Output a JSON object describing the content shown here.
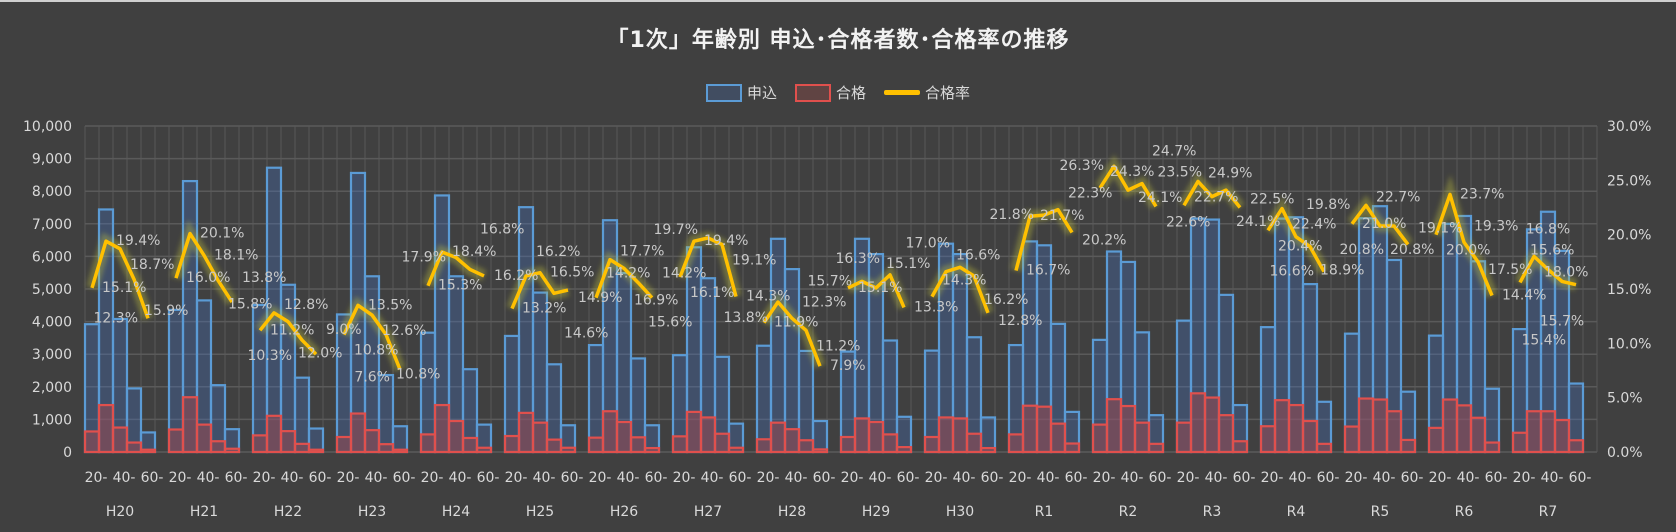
{
  "title": "「1次」年齢別 申込･合格者数･合格率の推移",
  "legend": {
    "applicants": "申込",
    "passed": "合格",
    "rate": "合格率"
  },
  "colors": {
    "applicants": "#5b9bd5",
    "passed": "#e0504d",
    "rate": "#ffc000",
    "background": "#404040"
  },
  "chart_data": {
    "type": "bar+line",
    "title": "「1次」年齢別 申込･合格者数･合格率の推移",
    "groups": [
      "H20",
      "H21",
      "H22",
      "H23",
      "H24",
      "H25",
      "H26",
      "H27",
      "H28",
      "H29",
      "H30",
      "R1",
      "R2",
      "R3",
      "R4",
      "R5",
      "R6",
      "R7"
    ],
    "age_tick_labels": [
      "20-",
      "40-",
      "60-"
    ],
    "y_left": {
      "range": [
        0,
        10000
      ],
      "ticks": [
        "0",
        "1,000",
        "2,000",
        "3,000",
        "4,000",
        "5,000",
        "6,000",
        "7,000",
        "8,000",
        "9,000",
        "10,000"
      ]
    },
    "y_right": {
      "range": [
        0,
        30
      ],
      "ticks": [
        "0.0%",
        "5.0%",
        "10.0%",
        "15.0%",
        "20.0%",
        "25.0%",
        "30.0%"
      ]
    },
    "grid": true,
    "legend_position": "top",
    "series": [
      {
        "name": "申込",
        "type": "bar",
        "values": [
          [
            3920,
            7440,
            4080,
            1950,
            600
          ],
          [
            4360,
            8310,
            4650,
            2050,
            700
          ],
          [
            4510,
            8720,
            5130,
            2280,
            720
          ],
          [
            4220,
            8560,
            5390,
            2360,
            790
          ],
          [
            3660,
            7870,
            5390,
            2540,
            840
          ],
          [
            3560,
            7510,
            4890,
            2690,
            820
          ],
          [
            3280,
            7110,
            5490,
            2870,
            820
          ],
          [
            2970,
            6280,
            5330,
            2920,
            870
          ],
          [
            3260,
            6540,
            5610,
            3100,
            950
          ],
          [
            3080,
            6540,
            6070,
            3420,
            1080
          ],
          [
            3110,
            6390,
            6070,
            3520,
            1060
          ],
          [
            3280,
            6460,
            6340,
            3930,
            1230
          ],
          [
            3440,
            6150,
            5830,
            3670,
            1130
          ],
          [
            4030,
            7160,
            7130,
            4820,
            1440
          ],
          [
            3830,
            7160,
            7200,
            5150,
            1540
          ],
          [
            3630,
            7170,
            7540,
            5890,
            1850
          ],
          [
            3570,
            7000,
            7240,
            5850,
            1940
          ],
          [
            3770,
            6830,
            7370,
            6170,
            2100
          ]
        ]
      },
      {
        "name": "合格",
        "type": "bar",
        "values": [
          [
            630,
            1440,
            750,
            290,
            70
          ],
          [
            690,
            1680,
            840,
            330,
            100
          ],
          [
            510,
            1110,
            640,
            250,
            70
          ],
          [
            460,
            1180,
            670,
            240,
            70
          ],
          [
            540,
            1440,
            950,
            430,
            130
          ],
          [
            490,
            1200,
            900,
            380,
            130
          ],
          [
            440,
            1250,
            920,
            450,
            120
          ],
          [
            480,
            1230,
            1060,
            560,
            130
          ],
          [
            390,
            900,
            700,
            360,
            80
          ],
          [
            460,
            1030,
            920,
            540,
            150
          ],
          [
            460,
            1060,
            1030,
            560,
            120
          ],
          [
            540,
            1420,
            1390,
            870,
            260
          ],
          [
            840,
            1620,
            1410,
            900,
            250
          ],
          [
            900,
            1800,
            1670,
            1130,
            330
          ],
          [
            790,
            1590,
            1440,
            950,
            250
          ],
          [
            780,
            1640,
            1610,
            1250,
            370
          ],
          [
            740,
            1610,
            1430,
            1050,
            290
          ],
          [
            590,
            1250,
            1250,
            980,
            360
          ]
        ]
      },
      {
        "name": "合格率",
        "type": "line",
        "unit": "%",
        "values": [
          [
            15.1,
            19.4,
            18.7,
            15.9,
            12.3
          ],
          [
            16.0,
            20.1,
            18.1,
            15.8,
            13.8
          ],
          [
            11.2,
            12.8,
            12.0,
            10.3,
            9.0
          ],
          [
            10.8,
            13.5,
            12.6,
            10.8,
            7.6
          ],
          [
            15.3,
            18.4,
            17.9,
            16.8,
            16.2
          ],
          [
            13.2,
            16.2,
            16.5,
            14.6,
            14.9
          ],
          [
            14.2,
            17.7,
            16.9,
            15.6,
            14.2
          ],
          [
            16.1,
            19.4,
            19.7,
            19.1,
            14.3
          ],
          [
            11.9,
            13.8,
            12.3,
            11.2,
            7.9
          ],
          [
            15.1,
            15.7,
            15.1,
            16.3,
            13.3
          ],
          [
            14.3,
            16.6,
            17.0,
            16.2,
            12.8
          ],
          [
            16.7,
            21.7,
            21.8,
            22.3,
            20.2
          ],
          [
            24.3,
            26.3,
            24.1,
            24.7,
            22.6
          ],
          [
            22.7,
            24.9,
            23.5,
            24.1,
            22.5
          ],
          [
            20.4,
            22.4,
            19.8,
            18.9,
            16.6
          ],
          [
            21.0,
            22.7,
            20.8,
            20.8,
            19.1
          ],
          [
            20.0,
            23.7,
            19.3,
            17.5,
            14.4
          ],
          [
            15.6,
            18.0,
            16.8,
            15.7,
            15.4
          ]
        ]
      }
    ]
  }
}
